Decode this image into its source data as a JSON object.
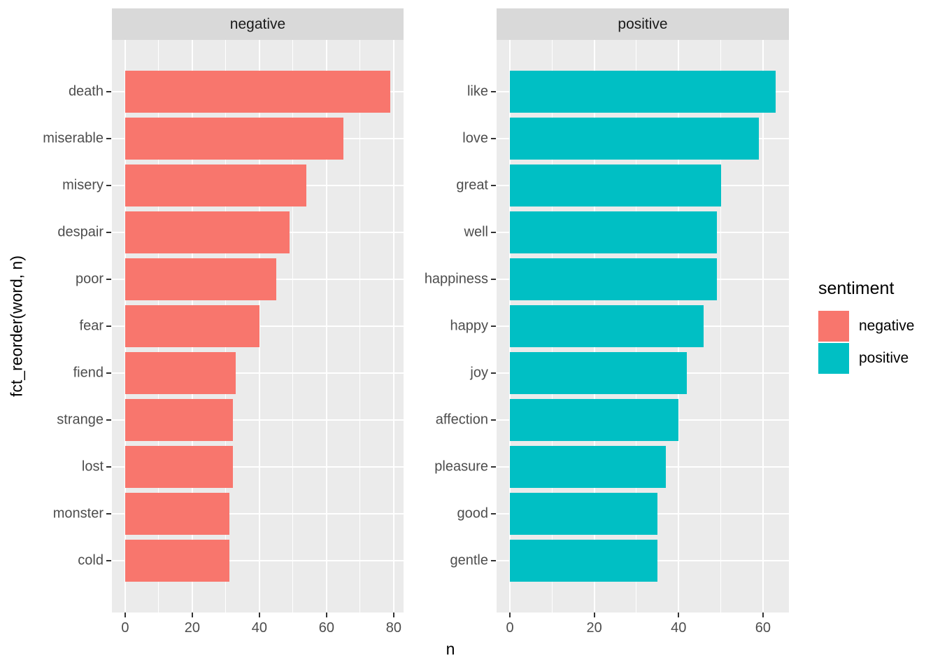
{
  "chart_data": {
    "type": "bar",
    "orientation": "horizontal",
    "title": "",
    "xlabel": "n",
    "ylabel": "fct_reorder(word, n)",
    "facets": [
      {
        "label": "negative",
        "bar_color": "#F8766D",
        "categories": [
          "death",
          "miserable",
          "misery",
          "despair",
          "poor",
          "fear",
          "fiend",
          "strange",
          "lost",
          "monster",
          "cold"
        ],
        "values": [
          79,
          65,
          54,
          49,
          45,
          40,
          33,
          32,
          32,
          31,
          31
        ],
        "x_ticks": [
          0,
          20,
          40,
          60,
          80
        ],
        "x_minor_ticks": [
          10,
          30,
          50,
          70
        ],
        "x_data_max": 79
      },
      {
        "label": "positive",
        "bar_color": "#00BFC4",
        "categories": [
          "like",
          "love",
          "great",
          "well",
          "happiness",
          "happy",
          "joy",
          "affection",
          "pleasure",
          "good",
          "gentle"
        ],
        "values": [
          63,
          59,
          50,
          49,
          49,
          46,
          42,
          40,
          37,
          35,
          35
        ],
        "x_ticks": [
          0,
          20,
          40,
          60
        ],
        "x_minor_ticks": [
          10,
          30,
          50
        ],
        "x_data_max": 63
      }
    ],
    "legend": {
      "title": "sentiment",
      "position": "right",
      "entries": [
        {
          "label": "negative",
          "color": "#F8766D"
        },
        {
          "label": "positive",
          "color": "#00BFC4"
        }
      ]
    },
    "style": {
      "panel_bg": "#EBEBEB",
      "strip_bg": "#D9D9D9",
      "grid_color": "#FFFFFF",
      "axis_text_color": "#4D4D4D",
      "strip_text_color": "#1A1A1A",
      "axis_title_color": "#000000"
    },
    "layout_hints": {
      "expansion": "5% continuous x, 0.6 unit discrete y",
      "grid": "major+minor vertical, major horizontal",
      "legend_position": "right-middle"
    }
  }
}
